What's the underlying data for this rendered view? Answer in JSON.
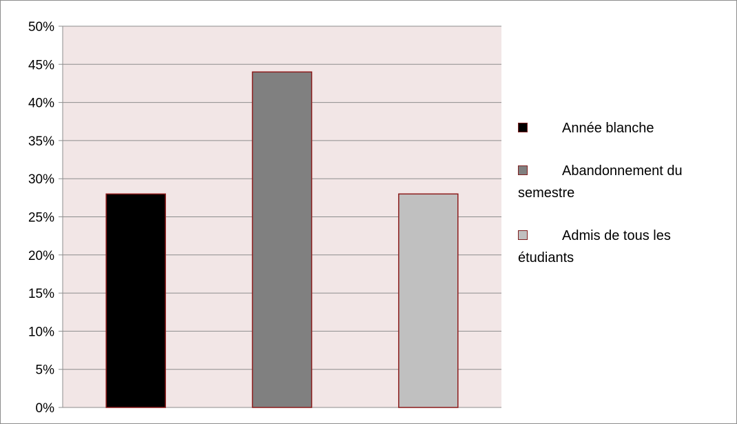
{
  "chart_data": {
    "type": "bar",
    "categories": [
      "Année blanche",
      "Abandonnement du semestre",
      "Admis de tous les étudiants"
    ],
    "values": [
      28,
      44,
      28
    ],
    "colors": [
      "#000000",
      "#808080",
      "#c0c0c0"
    ],
    "bar_border_color": "#8b1a1a",
    "plot_background": "#f2e6e6",
    "yticks": [
      "0%",
      "5%",
      "10%",
      "15%",
      "20%",
      "25%",
      "30%",
      "35%",
      "40%",
      "45%",
      "50%"
    ],
    "ylim": [
      0,
      50
    ],
    "grid": true,
    "legend_position": "right",
    "title": "",
    "xlabel": "",
    "ylabel": ""
  }
}
